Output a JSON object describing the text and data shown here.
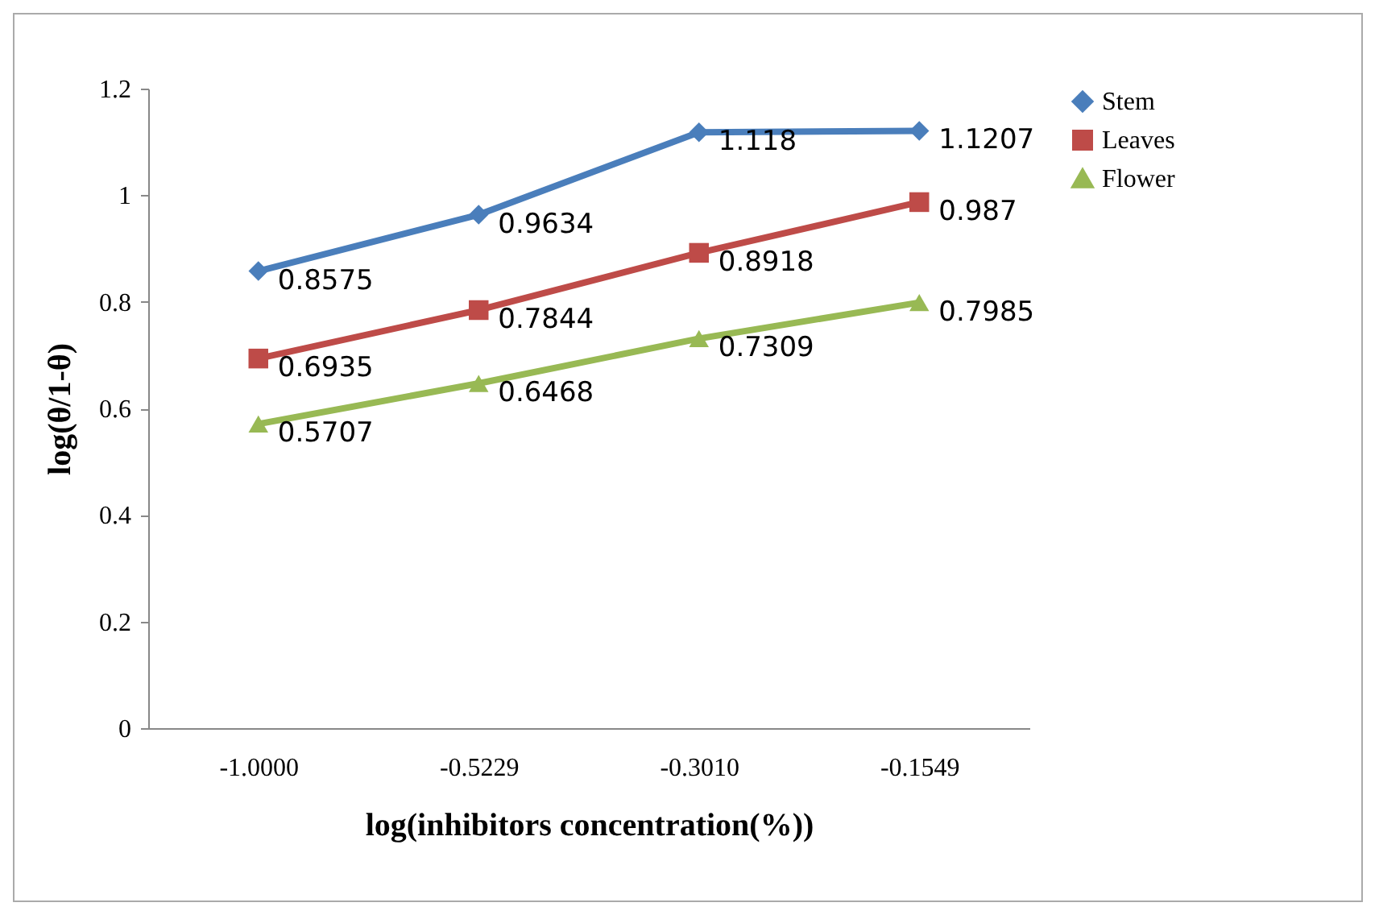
{
  "chart_data": {
    "type": "line",
    "xlabel": "log(inhibitors concentration(%))",
    "ylabel": "log(θ/1-θ)",
    "categories": [
      "-1.0000",
      "-0.5229",
      "-0.3010",
      "-0.1549"
    ],
    "series": [
      {
        "name": "Stem",
        "color": "#4a7ebb",
        "marker": "diamond",
        "values": [
          0.8575,
          0.9634,
          1.118,
          1.1207
        ]
      },
      {
        "name": "Leaves",
        "color": "#be4b48",
        "marker": "square",
        "values": [
          0.6935,
          0.7844,
          0.8918,
          0.987
        ]
      },
      {
        "name": "Flower",
        "color": "#98b954",
        "marker": "triangle",
        "values": [
          0.5707,
          0.6468,
          0.7309,
          0.7985
        ]
      }
    ],
    "ylim": [
      0,
      1.2
    ],
    "yticks": [
      0,
      0.2,
      0.4,
      0.6,
      0.8,
      1,
      1.2
    ],
    "data_labels": true,
    "legend": "right",
    "grid": false,
    "line_style": "solid"
  }
}
